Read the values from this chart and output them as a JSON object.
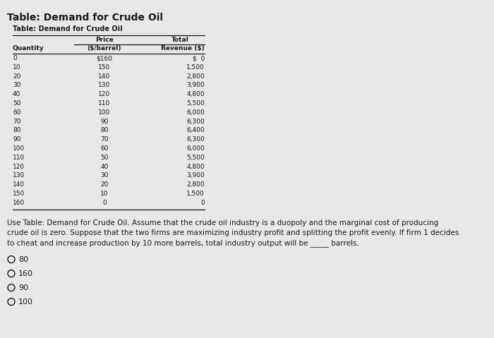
{
  "main_title": "Table: Demand for Crude Oil",
  "sub_title": "Table: Demand for Crude Oil",
  "rows": [
    [
      "0",
      "$160",
      "$  0"
    ],
    [
      "10",
      "150",
      "1,500"
    ],
    [
      "20",
      "140",
      "2,800"
    ],
    [
      "30",
      "130",
      "3,900"
    ],
    [
      "40",
      "120",
      "4,800"
    ],
    [
      "50",
      "110",
      "5,500"
    ],
    [
      "60",
      "100",
      "6,000"
    ],
    [
      "70",
      "90",
      "6,300"
    ],
    [
      "80",
      "80",
      "6,400"
    ],
    [
      "90",
      "70",
      "6,300"
    ],
    [
      "100",
      "60",
      "6,000"
    ],
    [
      "110",
      "50",
      "5,500"
    ],
    [
      "120",
      "40",
      "4,800"
    ],
    [
      "130",
      "30",
      "3,900"
    ],
    [
      "140",
      "20",
      "2,800"
    ],
    [
      "150",
      "10",
      "1,500"
    ],
    [
      "160",
      "0",
      "0"
    ]
  ],
  "para_line1": "Use Table: Demand for Crude Oil. Assume that the crude oil industry is a duopoly and the marginal cost of producing",
  "para_line2": "crude oil is zero. Suppose that the two firms are maximizing industry profit and splitting the profit evenly. If firm 1 decides",
  "para_line3": "to cheat and increase production by 10 more barrels, total industry output will be _____ barrels.",
  "options": [
    "80",
    "160",
    "90",
    "100"
  ],
  "bg_color": "#e8e8e8",
  "text_color": "#1a1a1a",
  "fs_main_title": 10,
  "fs_sub_title": 7,
  "fs_table": 6.5,
  "fs_para": 7.5,
  "fs_options": 8
}
